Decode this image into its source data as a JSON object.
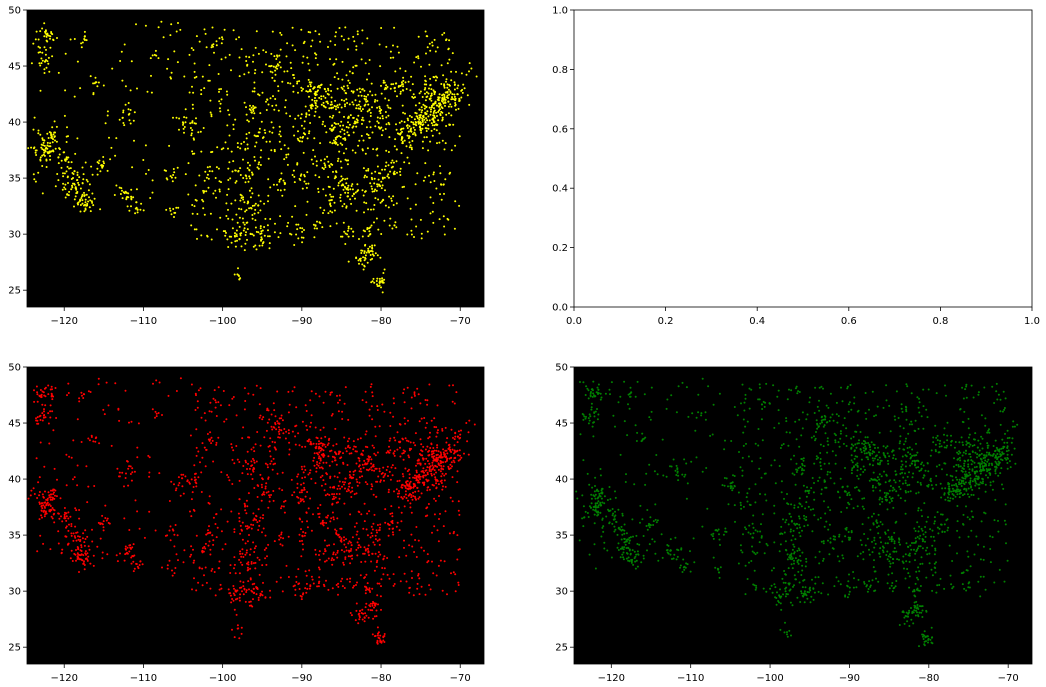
{
  "figure": {
    "background": "#ffffff"
  },
  "chart_data": [
    {
      "type": "scatter",
      "panel": "top-left",
      "facecolor": "#000000",
      "point_color": "#ffff00",
      "xlim": [
        -124.7,
        -67.0
      ],
      "ylim": [
        23.5,
        50.0
      ],
      "xticks": [
        -120,
        -110,
        -100,
        -90,
        -80,
        -70
      ],
      "yticks": [
        25,
        30,
        35,
        40,
        45,
        50
      ],
      "tick_labels_x": [
        "−120",
        "−110",
        "−100",
        "−90",
        "−80",
        "−70"
      ],
      "tick_labels_y": [
        "25",
        "30",
        "35",
        "40",
        "45",
        "50"
      ],
      "points_estimated": true,
      "series": [
        {
          "x": [],
          "y": []
        }
      ]
    },
    {
      "type": "scatter",
      "panel": "top-right",
      "facecolor": "#ffffff",
      "xlim": [
        0.0,
        1.0
      ],
      "ylim": [
        0.0,
        1.0
      ],
      "xticks": [
        0.0,
        0.2,
        0.4,
        0.6,
        0.8,
        1.0
      ],
      "yticks": [
        0.0,
        0.2,
        0.4,
        0.6,
        0.8,
        1.0
      ],
      "tick_labels_x": [
        "0.0",
        "0.2",
        "0.4",
        "0.6",
        "0.8",
        "1.0"
      ],
      "tick_labels_y": [
        "0.0",
        "0.2",
        "0.4",
        "0.6",
        "0.8",
        "1.0"
      ],
      "series": []
    },
    {
      "type": "scatter",
      "panel": "bottom-left",
      "facecolor": "#000000",
      "point_color": "#ff0000",
      "xlim": [
        -124.7,
        -67.0
      ],
      "ylim": [
        23.5,
        50.0
      ],
      "xticks": [
        -120,
        -110,
        -100,
        -90,
        -80,
        -70
      ],
      "yticks": [
        25,
        30,
        35,
        40,
        45,
        50
      ],
      "tick_labels_x": [
        "−120",
        "−110",
        "−100",
        "−90",
        "−80",
        "−70"
      ],
      "tick_labels_y": [
        "25",
        "30",
        "35",
        "40",
        "45",
        "50"
      ],
      "points_estimated": true,
      "series": [
        {
          "x": [],
          "y": []
        }
      ]
    },
    {
      "type": "scatter",
      "panel": "bottom-right",
      "facecolor": "#000000",
      "point_color": "#008000",
      "xlim": [
        -124.7,
        -67.0
      ],
      "ylim": [
        23.5,
        50.0
      ],
      "xticks": [
        -120,
        -110,
        -100,
        -90,
        -80,
        -70
      ],
      "yticks": [
        25,
        30,
        35,
        40,
        45,
        50
      ],
      "tick_labels_x": [
        "−120",
        "−110",
        "−100",
        "−90",
        "−80",
        "−70"
      ],
      "tick_labels_y": [
        "25",
        "30",
        "35",
        "40",
        "45",
        "50"
      ],
      "points_estimated": true,
      "series": [
        {
          "x": [],
          "y": []
        }
      ]
    }
  ]
}
